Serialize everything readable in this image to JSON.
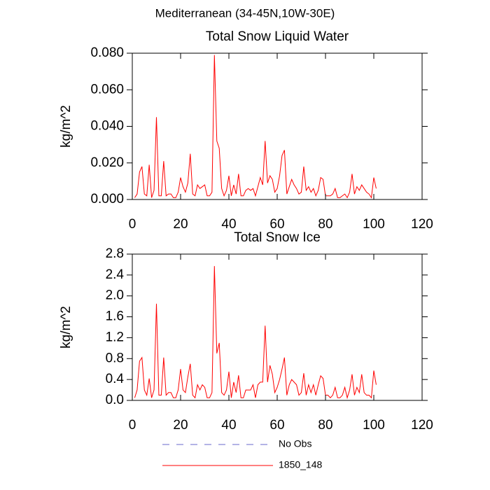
{
  "title": "Mediterranean (34-45N,10W-30E)",
  "legend": [
    {
      "name": "No Obs",
      "color": "#6a6acd",
      "dashed": true
    },
    {
      "name": "1850_148",
      "color": "#ff0000",
      "dashed": false
    }
  ],
  "chart_data": [
    {
      "type": "line",
      "title": "Total Snow Liquid Water",
      "ylabel": "kg/m^2",
      "x": [
        1,
        2,
        3,
        4,
        5,
        6,
        7,
        8,
        9,
        10,
        11,
        12,
        13,
        14,
        15,
        16,
        17,
        18,
        19,
        20,
        21,
        22,
        23,
        24,
        25,
        26,
        27,
        28,
        29,
        30,
        31,
        32,
        33,
        34,
        35,
        36,
        37,
        38,
        39,
        40,
        41,
        42,
        43,
        44,
        45,
        46,
        47,
        48,
        49,
        50,
        51,
        52,
        53,
        54,
        55,
        56,
        57,
        58,
        59,
        60,
        61,
        62,
        63,
        64,
        65,
        66,
        67,
        68,
        69,
        70,
        71,
        72,
        73,
        74,
        75,
        76,
        77,
        78,
        79,
        80,
        81,
        82,
        83,
        84,
        85,
        86,
        87,
        88,
        89,
        90,
        91,
        92,
        93,
        94,
        95,
        96,
        97,
        98,
        99,
        100,
        101
      ],
      "series": [
        {
          "name": "1850_148",
          "color": "#ff0000",
          "values": [
            0.001,
            0.003,
            0.015,
            0.018,
            0.003,
            0.002,
            0.019,
            0.001,
            0.005,
            0.045,
            0.002,
            0.002,
            0.021,
            0.002,
            0.003,
            0.003,
            0.001,
            0.001,
            0.004,
            0.012,
            0.007,
            0.004,
            0.009,
            0.025,
            0.003,
            0.002,
            0.008,
            0.006,
            0.007,
            0.008,
            0.002,
            0.002,
            0.004,
            0.079,
            0.032,
            0.028,
            0.006,
            0.002,
            0.005,
            0.013,
            0.002,
            0.008,
            0.003,
            0.014,
            0.002,
            0.002,
            0.005,
            0.006,
            0.005,
            0.006,
            0.002,
            0.007,
            0.012,
            0.008,
            0.032,
            0.009,
            0.013,
            0.011,
            0.004,
            0.006,
            0.013,
            0.024,
            0.027,
            0.003,
            0.007,
            0.011,
            0.008,
            0.006,
            0.003,
            0.004,
            0.018,
            0.005,
            0.007,
            0.004,
            0.006,
            0.002,
            0.005,
            0.012,
            0.011,
            0.002,
            0.002,
            0.002,
            0.003,
            0.006,
            0.001,
            0.001,
            0.002,
            0.003,
            0.001,
            0.004,
            0.014,
            0.003,
            0.007,
            0.005,
            0.008,
            0.006,
            0.004,
            0.003,
            0.001,
            0.012,
            0.006
          ]
        }
      ],
      "xlim": [
        0,
        120
      ],
      "xticks": [
        0,
        20,
        40,
        60,
        80,
        100,
        120
      ],
      "ylim": [
        0,
        0.08
      ],
      "yticks": [
        {
          "value": 0,
          "label": "0.000"
        },
        {
          "value": 0.02,
          "label": "0.020"
        },
        {
          "value": 0.04,
          "label": "0.040"
        },
        {
          "value": 0.06,
          "label": "0.060"
        },
        {
          "value": 0.08,
          "label": "0.080"
        }
      ]
    },
    {
      "type": "line",
      "title": "Total Snow Ice",
      "ylabel": "kg/m^2",
      "x": [
        1,
        2,
        3,
        4,
        5,
        6,
        7,
        8,
        9,
        10,
        11,
        12,
        13,
        14,
        15,
        16,
        17,
        18,
        19,
        20,
        21,
        22,
        23,
        24,
        25,
        26,
        27,
        28,
        29,
        30,
        31,
        32,
        33,
        34,
        35,
        36,
        37,
        38,
        39,
        40,
        41,
        42,
        43,
        44,
        45,
        46,
        47,
        48,
        49,
        50,
        51,
        52,
        53,
        54,
        55,
        56,
        57,
        58,
        59,
        60,
        61,
        62,
        63,
        64,
        65,
        66,
        67,
        68,
        69,
        70,
        71,
        72,
        73,
        74,
        75,
        76,
        77,
        78,
        79,
        80,
        81,
        82,
        83,
        84,
        85,
        86,
        87,
        88,
        89,
        90,
        91,
        92,
        93,
        94,
        95,
        96,
        97,
        98,
        99,
        100,
        101
      ],
      "series": [
        {
          "name": "1850_148",
          "color": "#ff0000",
          "values": [
            0.05,
            0.2,
            0.75,
            0.82,
            0.2,
            0.1,
            0.42,
            0.05,
            0.2,
            1.85,
            0.1,
            0.1,
            0.82,
            0.1,
            0.15,
            0.15,
            0.05,
            0.05,
            0.2,
            0.6,
            0.2,
            0.15,
            0.45,
            0.7,
            0.1,
            0.05,
            0.3,
            0.2,
            0.3,
            0.25,
            0.05,
            0.05,
            0.15,
            2.57,
            0.9,
            1.1,
            0.15,
            0.1,
            0.2,
            0.55,
            0.05,
            0.35,
            0.15,
            0.48,
            0.05,
            0.05,
            0.2,
            0.2,
            0.2,
            0.3,
            0.05,
            0.3,
            0.35,
            0.35,
            1.43,
            0.35,
            0.67,
            0.5,
            0.15,
            0.25,
            0.4,
            0.6,
            0.82,
            0.1,
            0.3,
            0.4,
            0.35,
            0.3,
            0.1,
            0.15,
            0.52,
            0.1,
            0.3,
            0.15,
            0.3,
            0.1,
            0.3,
            0.47,
            0.42,
            0.1,
            0.1,
            0.05,
            0.1,
            0.25,
            0.05,
            0.05,
            0.1,
            0.25,
            0.05,
            0.2,
            0.5,
            0.1,
            0.25,
            0.15,
            0.5,
            0.15,
            0.1,
            0.1,
            0.05,
            0.57,
            0.3
          ]
        }
      ],
      "xlim": [
        0,
        120
      ],
      "xticks": [
        0,
        20,
        40,
        60,
        80,
        100,
        120
      ],
      "ylim": [
        0,
        2.8
      ],
      "yticks": [
        {
          "value": 0,
          "label": "0.0"
        },
        0.4,
        0.8,
        1.2,
        1.6,
        {
          "value": 2,
          "label": "2.0"
        },
        2.4,
        2.8
      ]
    }
  ]
}
